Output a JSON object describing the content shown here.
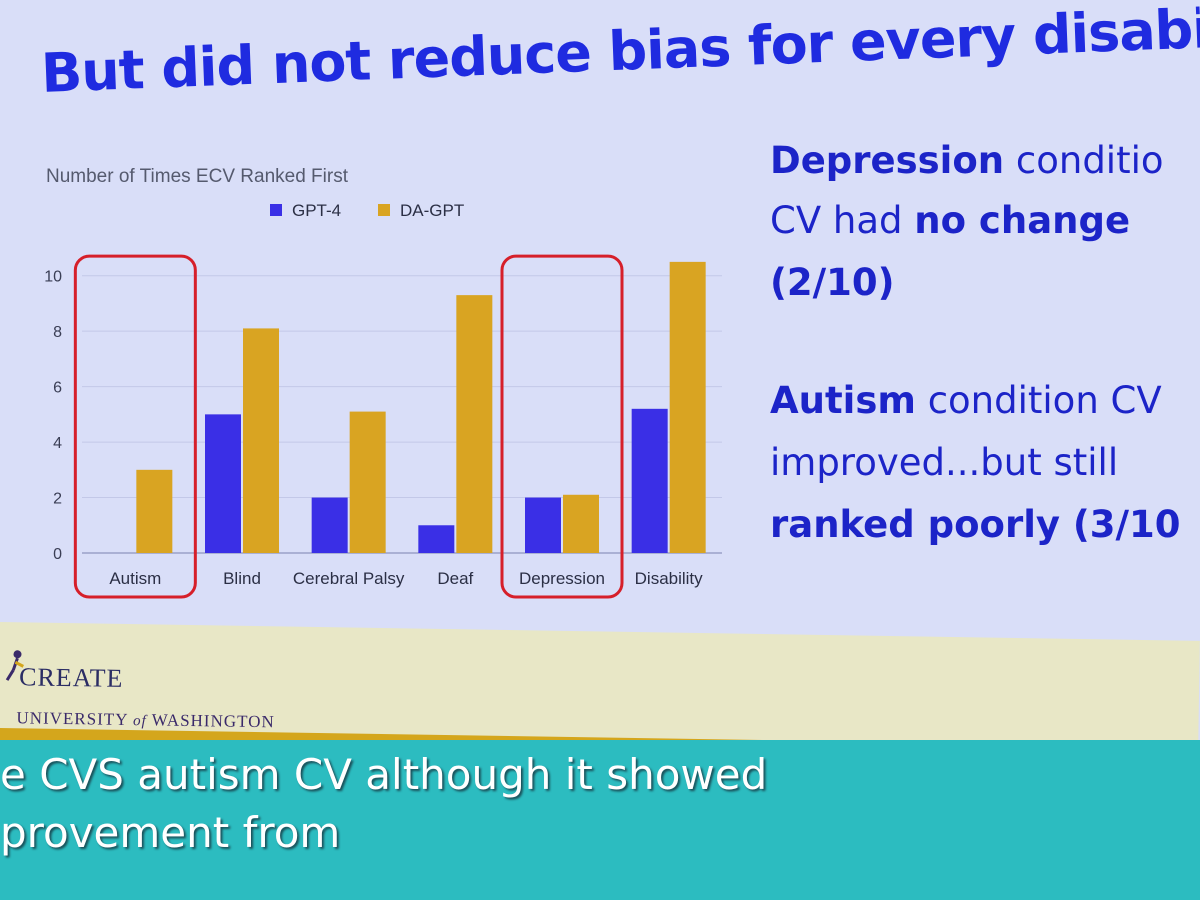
{
  "slide": {
    "title": "But did not reduce bias for every disability..",
    "notes": [
      [
        {
          "text": "Depression",
          "bold": true
        },
        {
          "text": " conditio",
          "bold": false
        }
      ],
      [
        {
          "text": "CV had ",
          "bold": false
        },
        {
          "text": "no change",
          "bold": true
        }
      ],
      [
        {
          "text": "(2/10)",
          "bold": true
        }
      ],
      [
        {
          "text": "Autism",
          "bold": true
        },
        {
          "text": " condition CV",
          "bold": false
        }
      ],
      [
        {
          "text": "improved...but still",
          "bold": false
        }
      ],
      [
        {
          "text": "ranked poorly (3/10",
          "bold": true
        }
      ]
    ]
  },
  "chart_data": {
    "type": "bar",
    "title": "Number of Times ECV Ranked First",
    "categories": [
      "Autism",
      "Blind",
      "Cerebral Palsy",
      "Deaf",
      "Depression",
      "Disability"
    ],
    "series": [
      {
        "name": "GPT-4",
        "values": [
          0,
          5,
          2,
          1,
          2,
          5.2
        ],
        "color": "#3a2fe6"
      },
      {
        "name": "DA-GPT",
        "values": [
          3,
          8.1,
          5.1,
          9.3,
          2.1,
          10.5
        ],
        "color": "#d9a422"
      }
    ],
    "yticks": [
      0,
      2,
      4,
      6,
      8,
      10
    ],
    "ylim": [
      0,
      11
    ],
    "grid": true,
    "legend_position": "top",
    "highlighted_categories": [
      "Autism",
      "Depression"
    ],
    "highlight_color": "#d61f2a"
  },
  "footer": {
    "logo_name": "CREATE",
    "university": "UNIVERSITY of WASHINGTON"
  },
  "caption": {
    "line1": "e CVS autism CV although it showed",
    "line2": "provement from"
  }
}
